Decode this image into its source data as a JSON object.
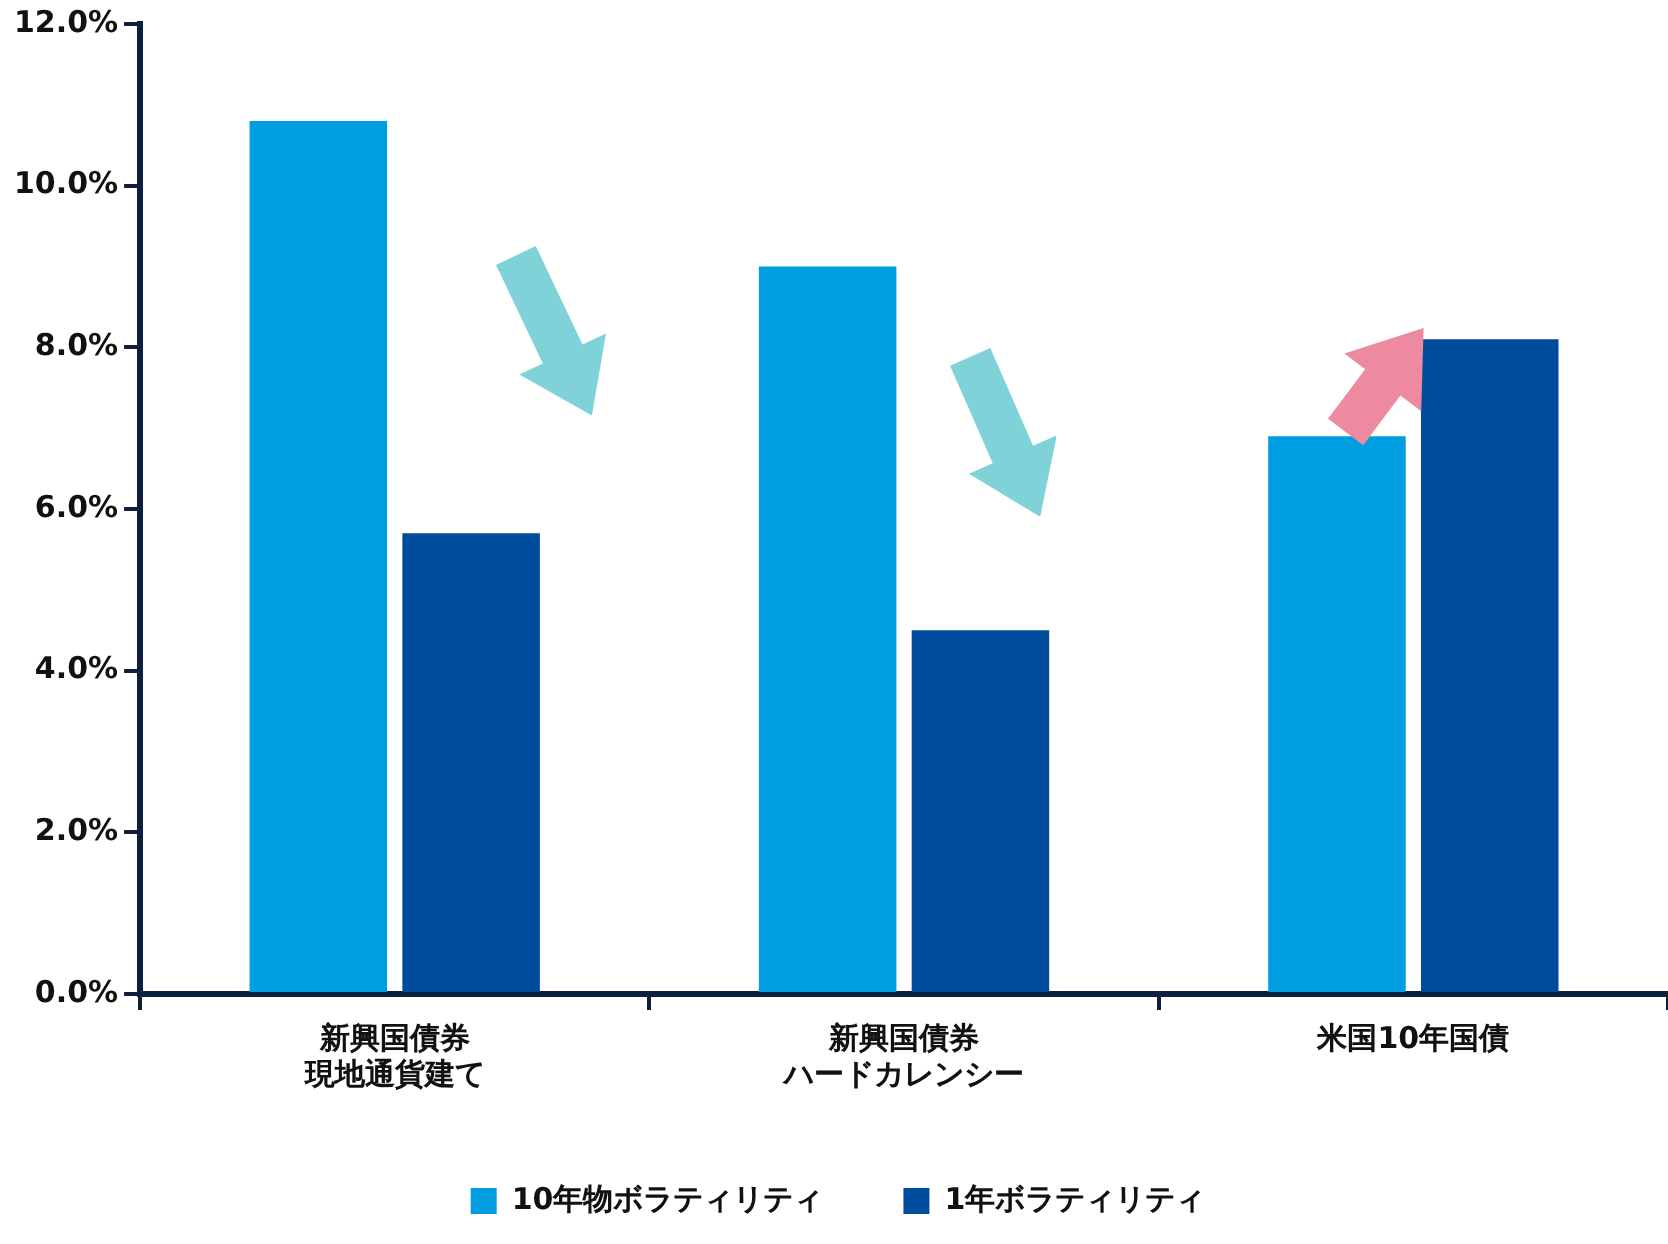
{
  "chart_data": {
    "type": "bar",
    "categories": [
      "新興国債券現地通貨建て",
      "新興国債券ハードカレンシー",
      "米国10年国債"
    ],
    "series": [
      {
        "name": "10年物ボラティリティ",
        "color": "#009ee0",
        "values": [
          10.8,
          9.0,
          6.9
        ]
      },
      {
        "name": "1年ボラティリティ",
        "color": "#004c9c",
        "values": [
          5.7,
          4.5,
          8.1
        ]
      }
    ],
    "ylim": [
      0,
      12
    ],
    "yticks": [
      {
        "value": 0,
        "label": "0.0%"
      },
      {
        "value": 2,
        "label": "2.0%"
      },
      {
        "value": 4,
        "label": "4.0%"
      },
      {
        "value": 6,
        "label": "6.0%"
      },
      {
        "value": 8,
        "label": "8.0%"
      },
      {
        "value": 10,
        "label": "10.0%"
      },
      {
        "value": 12,
        "label": "12.0%"
      }
    ],
    "grid": false,
    "legend": "bottom"
  }
}
